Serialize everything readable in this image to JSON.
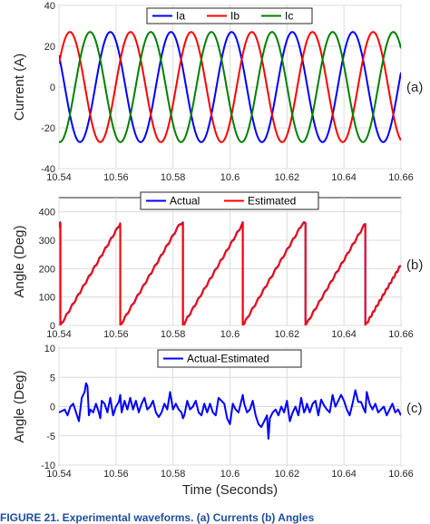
{
  "chart_data": [
    {
      "type": "line",
      "panel_tag": "(a)",
      "title": "",
      "xlabel": "",
      "ylabel": "Current (A)",
      "xlim": [
        10.54,
        10.66
      ],
      "ylim": [
        -40,
        40
      ],
      "x_ticks": [
        "10.54",
        "10.56",
        "10.58",
        "10.6",
        "10.62",
        "10.64",
        "10.66"
      ],
      "y_ticks": [
        "-40",
        "-20",
        "0",
        "20",
        "40"
      ],
      "grid": true,
      "legend": "top-center, horizontal",
      "series": [
        {
          "name": "Ia",
          "color": "#0000ff",
          "amplitude": 27,
          "frequency_hz": 47,
          "phase_deg": 145,
          "start_value": 5
        },
        {
          "name": "Ib",
          "color": "#ff0000",
          "amplitude": 27,
          "frequency_hz": 47,
          "phase_deg": 25,
          "start_value": 22
        },
        {
          "name": "Ic",
          "color": "#008000",
          "amplitude": 27,
          "frequency_hz": 47,
          "phase_deg": 265,
          "start_value": -25
        }
      ]
    },
    {
      "type": "line",
      "panel_tag": "(b)",
      "title": "",
      "xlabel": "",
      "ylabel": "Angle (Deg)",
      "xlim": [
        10.54,
        10.66
      ],
      "ylim": [
        0,
        450
      ],
      "x_ticks": [
        "10.54",
        "10.56",
        "10.58",
        "10.6",
        "10.62",
        "10.64",
        "10.66"
      ],
      "y_ticks": [
        "0",
        "100",
        "200",
        "300",
        "400"
      ],
      "grid": true,
      "legend": "top-center, horizontal",
      "wrap_times": [
        10.5405,
        10.5615,
        10.5835,
        10.6045,
        10.6265,
        10.6475
      ],
      "series": [
        {
          "name": "Actual",
          "color": "#0000ff"
        },
        {
          "name": "Estimated",
          "color": "#ff0000"
        }
      ]
    },
    {
      "type": "line",
      "panel_tag": "(c)",
      "title": "",
      "xlabel": "Time (Seconds)",
      "ylabel": "Angle (Deg)",
      "xlim": [
        10.54,
        10.66
      ],
      "ylim": [
        -10,
        10
      ],
      "x_ticks": [
        "10.54",
        "10.56",
        "10.58",
        "10.6",
        "10.62",
        "10.64",
        "10.66"
      ],
      "y_ticks": [
        "-10",
        "-5",
        "0",
        "5",
        "10"
      ],
      "grid": true,
      "legend": "top-center",
      "series": [
        {
          "name": "Actual-Estimated",
          "color": "#0000ff",
          "x": [
            10.54,
            10.542,
            10.543,
            10.544,
            10.545,
            10.546,
            10.547,
            10.5475,
            10.548,
            10.549,
            10.5495,
            10.55,
            10.5505,
            10.551,
            10.552,
            10.553,
            10.554,
            10.5545,
            10.555,
            10.556,
            10.557,
            10.558,
            10.559,
            10.56,
            10.561,
            10.5615,
            10.562,
            10.563,
            10.564,
            10.565,
            10.566,
            10.567,
            10.568,
            10.569,
            10.57,
            10.571,
            10.572,
            10.573,
            10.574,
            10.575,
            10.576,
            10.577,
            10.578,
            10.579,
            10.58,
            10.581,
            10.582,
            10.583,
            10.5835,
            10.584,
            10.585,
            10.586,
            10.587,
            10.588,
            10.589,
            10.59,
            10.591,
            10.592,
            10.593,
            10.594,
            10.595,
            10.596,
            10.597,
            10.598,
            10.599,
            10.6,
            10.601,
            10.602,
            10.603,
            10.604,
            10.6045,
            10.605,
            10.606,
            10.607,
            10.608,
            10.609,
            10.61,
            10.611,
            10.612,
            10.613,
            10.6135,
            10.614,
            10.615,
            10.616,
            10.617,
            10.618,
            10.619,
            10.62,
            10.621,
            10.622,
            10.623,
            10.624,
            10.625,
            10.626,
            10.6265,
            10.627,
            10.628,
            10.629,
            10.63,
            10.631,
            10.632,
            10.633,
            10.634,
            10.635,
            10.636,
            10.637,
            10.638,
            10.639,
            10.64,
            10.641,
            10.642,
            10.643,
            10.644,
            10.645,
            10.646,
            10.647,
            10.6475,
            10.648,
            10.649,
            10.65,
            10.651,
            10.652,
            10.653,
            10.654,
            10.655,
            10.656,
            10.657,
            10.658,
            10.659,
            10.66
          ],
          "y": [
            -1,
            -0.5,
            -1.5,
            0,
            0.5,
            -1,
            -2.5,
            -0.5,
            1.5,
            2.5,
            4,
            3.5,
            -1.5,
            -0.5,
            -1,
            0.5,
            -1,
            -2,
            1,
            0.5,
            -1,
            1.5,
            -1.5,
            0,
            0.8,
            2,
            -1,
            1,
            -0.5,
            1.5,
            -0.5,
            1,
            -1,
            0.5,
            1.5,
            -0.5,
            0,
            1,
            -1,
            -1.8,
            -1,
            0.5,
            -0.5,
            2.5,
            -0.5,
            0.5,
            -0.5,
            -1,
            -2,
            -1.5,
            1,
            -0.5,
            0,
            1,
            -1,
            -1.5,
            0.5,
            -1,
            0.5,
            -1,
            -1.5,
            1.5,
            1,
            0.5,
            -2,
            -3,
            0.5,
            -0.5,
            -1,
            1,
            2,
            0.5,
            -1,
            -0.5,
            1,
            -1.5,
            -3,
            -3.5,
            -2.5,
            -1.5,
            -5.5,
            -2,
            -1,
            -0.5,
            -1.5,
            0,
            -1,
            1,
            -2.5,
            -1,
            0,
            -1.5,
            1.5,
            -1,
            -0.5,
            0.5,
            -1,
            0.5,
            1,
            -1.5,
            1.2,
            0.2,
            -0.5,
            -1,
            2,
            0,
            1,
            2,
            1,
            -0.5,
            -1.5,
            0.5,
            2.8,
            0.8,
            0.8,
            -0.5,
            -1,
            2.5,
            0.5,
            -0.5,
            0.5,
            -1,
            -0.5,
            0,
            -1.5,
            -0.5,
            0.5,
            -1,
            -0.5,
            -1.5
          ]
        }
      ]
    }
  ],
  "caption_text": "FIGURE 21. Experimental waveforms. (a) Currents (b) Angles"
}
